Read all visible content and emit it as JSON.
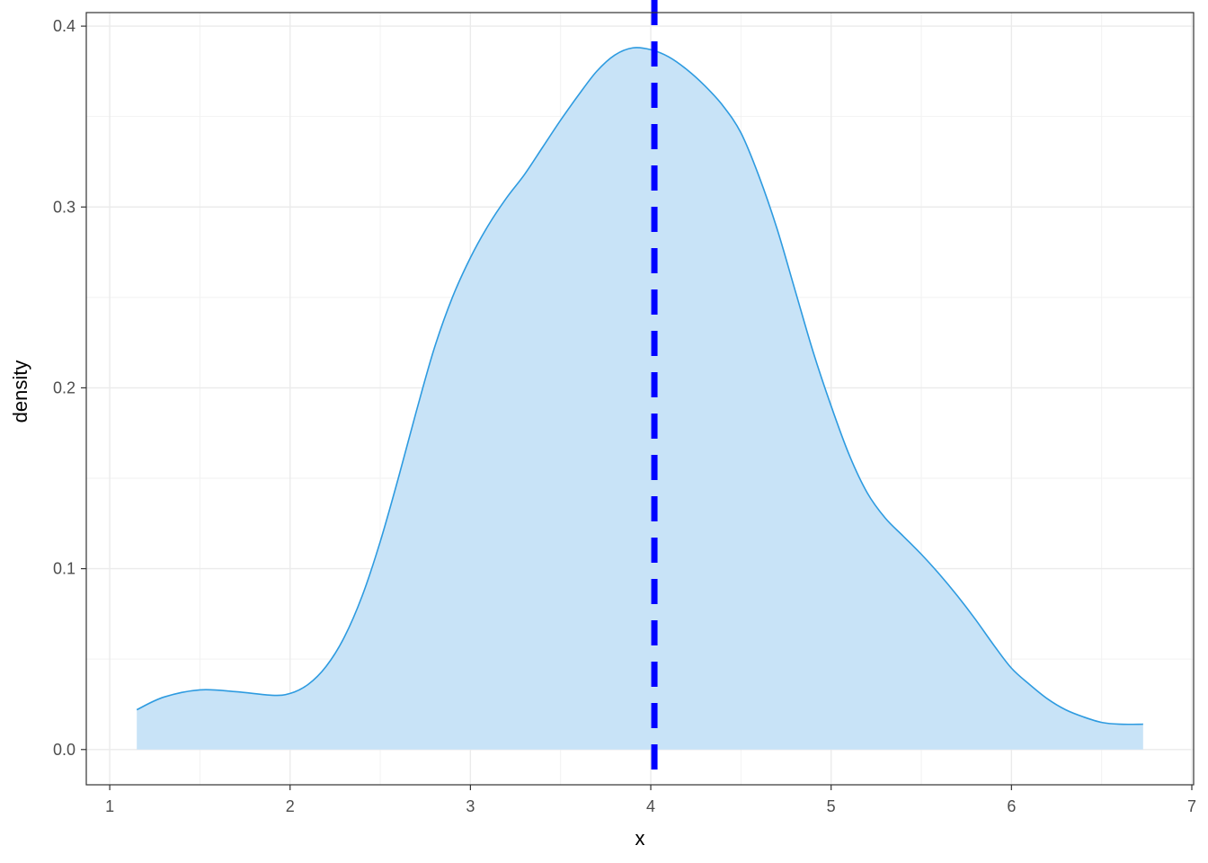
{
  "chart_data": {
    "type": "area",
    "title": "",
    "xlabel": "x",
    "ylabel": "density",
    "xlim": [
      0.87,
      7.01
    ],
    "ylim": [
      -0.0195,
      0.4075
    ],
    "x_ticks": [
      1,
      2,
      3,
      4,
      5,
      6,
      7
    ],
    "y_ticks": [
      0.0,
      0.1,
      0.2,
      0.3,
      0.4
    ],
    "x_tick_labels": [
      "1",
      "2",
      "3",
      "4",
      "5",
      "6",
      "7"
    ],
    "y_tick_labels": [
      "0.0",
      "0.1",
      "0.2",
      "0.3",
      "0.4"
    ],
    "grid": true,
    "legend": "none",
    "series": [
      {
        "x": [
          1.15,
          1.3,
          1.5,
          1.7,
          1.9,
          2.0,
          2.1,
          2.2,
          2.3,
          2.4,
          2.5,
          2.6,
          2.7,
          2.8,
          2.9,
          3.0,
          3.1,
          3.2,
          3.3,
          3.4,
          3.5,
          3.6,
          3.7,
          3.8,
          3.9,
          4.0,
          4.1,
          4.2,
          4.3,
          4.4,
          4.5,
          4.6,
          4.7,
          4.8,
          4.9,
          5.0,
          5.1,
          5.2,
          5.3,
          5.4,
          5.5,
          5.6,
          5.7,
          5.8,
          5.9,
          6.0,
          6.1,
          6.2,
          6.3,
          6.4,
          6.5,
          6.6,
          6.73
        ],
        "y": [
          0.022,
          0.029,
          0.033,
          0.032,
          0.03,
          0.031,
          0.036,
          0.046,
          0.062,
          0.085,
          0.115,
          0.15,
          0.187,
          0.222,
          0.25,
          0.272,
          0.29,
          0.305,
          0.318,
          0.333,
          0.348,
          0.362,
          0.375,
          0.384,
          0.388,
          0.387,
          0.383,
          0.376,
          0.367,
          0.356,
          0.341,
          0.317,
          0.288,
          0.254,
          0.22,
          0.19,
          0.163,
          0.142,
          0.128,
          0.118,
          0.108,
          0.097,
          0.085,
          0.072,
          0.058,
          0.045,
          0.036,
          0.028,
          0.022,
          0.018,
          0.015,
          0.014,
          0.014
        ],
        "fill_color": "#c8e3f7",
        "line_color": "#2e9be0"
      }
    ],
    "vline": {
      "x": 4.02,
      "color": "#0000ff",
      "style": "dashed"
    }
  }
}
